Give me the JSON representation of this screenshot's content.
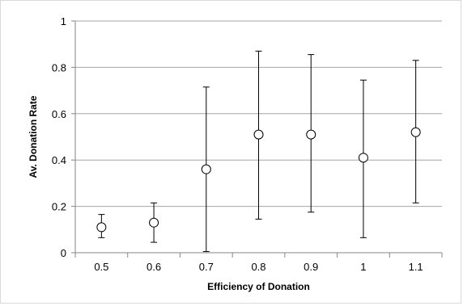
{
  "chart_data": {
    "type": "scatter",
    "title": "",
    "xlabel": "Efficiency of Donation",
    "ylabel": "Av. Donation Rate",
    "categories": [
      "0.5",
      "0.6",
      "0.7",
      "0.8",
      "0.9",
      "1",
      "1.1"
    ],
    "ylim": [
      0,
      1
    ],
    "y_ticks": [
      "0",
      "0.2",
      "0.4",
      "0.6",
      "0.8",
      "1"
    ],
    "grid": "horizontal",
    "legend": "none",
    "marker": "open-circle",
    "series": [
      {
        "values": [
          0.11,
          0.13,
          0.36,
          0.51,
          0.51,
          0.41,
          0.52
        ],
        "error_low": [
          0.065,
          0.045,
          0.005,
          0.145,
          0.175,
          0.065,
          0.215
        ],
        "error_high": [
          0.165,
          0.215,
          0.715,
          0.87,
          0.855,
          0.745,
          0.83
        ]
      }
    ],
    "colors": {
      "grid": "#a6a6a6",
      "axis": "#868686",
      "marker": "#000000",
      "error_bar": "#000000"
    }
  }
}
